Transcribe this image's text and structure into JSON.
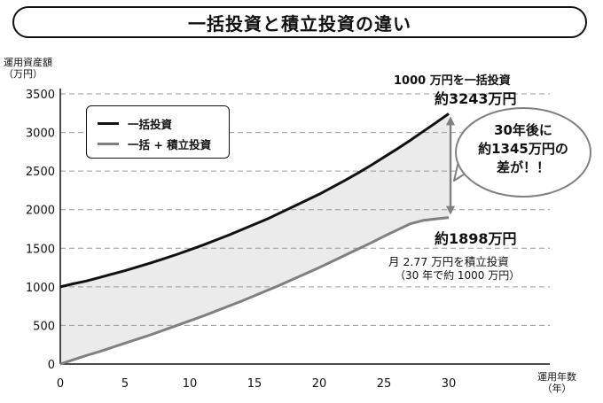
{
  "title": "一括投資と積立投資の違い",
  "chart_data": {
    "type": "area",
    "title": "一括投資と積立投資の違い",
    "ylabel": [
      "運用資産額",
      "（万円）"
    ],
    "xlabel": [
      "運用年数",
      "（年）"
    ],
    "xlim": [
      0,
      30
    ],
    "ylim": [
      0,
      3500
    ],
    "x_ticks": [
      0,
      5,
      10,
      15,
      20,
      25,
      30
    ],
    "y_ticks": [
      0,
      500,
      1000,
      1500,
      2000,
      2500,
      3000,
      3500
    ],
    "grid": "horizontal-dashed",
    "legend_position": "top-left",
    "x": [
      0,
      1,
      2,
      3,
      4,
      5,
      6,
      7,
      8,
      9,
      10,
      11,
      12,
      13,
      14,
      15,
      16,
      17,
      18,
      19,
      20,
      21,
      22,
      23,
      24,
      25,
      26,
      27,
      28,
      29,
      30
    ],
    "series": [
      {
        "name": "一括投資",
        "color": "#111111",
        "values": [
          1000,
          1040,
          1075,
          1120,
          1165,
          1210,
          1260,
          1310,
          1365,
          1420,
          1480,
          1540,
          1605,
          1670,
          1740,
          1810,
          1880,
          1960,
          2040,
          2120,
          2200,
          2290,
          2380,
          2475,
          2575,
          2680,
          2785,
          2895,
          3010,
          3125,
          3243
        ]
      },
      {
        "name": "一括 + 積立投資",
        "color": "#808080",
        "values": [
          0,
          55,
          110,
          160,
          215,
          270,
          325,
          380,
          440,
          500,
          560,
          620,
          685,
          750,
          815,
          885,
          955,
          1025,
          1100,
          1175,
          1250,
          1330,
          1410,
          1490,
          1570,
          1655,
          1735,
          1815,
          1860,
          1880,
          1898
        ]
      }
    ],
    "annotations": {
      "lump_caption": "1000 万円を一括投資",
      "lump_value": "約3243万円",
      "accum_value": "約1898万円",
      "accum_caption_1": "月 2.77 万円を積立投資",
      "accum_caption_2": "（30 年で約 1000 万円）",
      "bubble_1": "30年後に",
      "bubble_2": "約1345万円の",
      "bubble_3": "差が！！"
    }
  }
}
